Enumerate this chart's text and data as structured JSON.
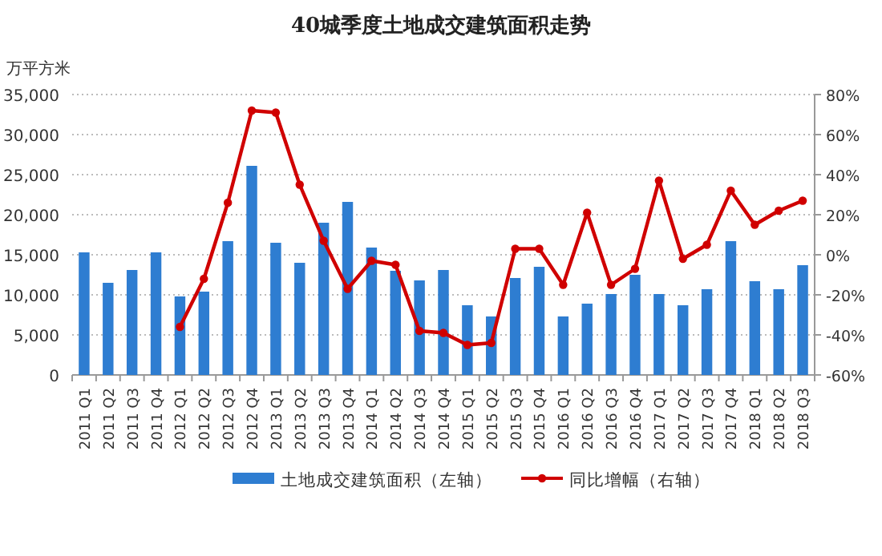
{
  "chart_data": {
    "type": "bar",
    "title": "40城季度土地成交建筑面积走势",
    "ylabel": "万平方米",
    "categories": [
      "2011 Q1",
      "2011 Q2",
      "2011 Q3",
      "2011 Q4",
      "2012 Q1",
      "2012 Q2",
      "2012 Q3",
      "2012 Q4",
      "2013 Q1",
      "2013 Q2",
      "2013 Q3",
      "2013 Q4",
      "2014 Q1",
      "2014 Q2",
      "2014 Q3",
      "2014 Q4",
      "2015 Q1",
      "2015 Q2",
      "2015 Q3",
      "2015 Q4",
      "2016 Q1",
      "2016 Q2",
      "2016 Q3",
      "2016 Q4",
      "2017 Q1",
      "2017 Q2",
      "2017 Q3",
      "2017 Q4",
      "2018 Q1",
      "2018 Q2",
      "2018 Q3"
    ],
    "series": [
      {
        "name": "土地成交建筑面积（左轴）",
        "color": "#2e7dd1",
        "values": [
          15300,
          11500,
          13100,
          15300,
          9800,
          10400,
          16700,
          26100,
          16500,
          14000,
          19000,
          21600,
          15900,
          13000,
          11800,
          13100,
          8700,
          7300,
          12100,
          13500,
          7300,
          8900,
          10100,
          12500,
          10100,
          8700,
          10700,
          16700,
          11700,
          10700,
          13700
        ]
      },
      {
        "name": "同比增幅（右轴）",
        "type": "line",
        "axis": "y2",
        "color": "#d00000",
        "values": [
          null,
          null,
          null,
          null,
          -36,
          -12,
          26,
          72,
          71,
          35,
          7,
          -17,
          -3,
          -5,
          -38,
          -39,
          -45,
          -44,
          3,
          3,
          -15,
          21,
          -15,
          -7,
          37,
          -2,
          5,
          32,
          15,
          22,
          27
        ]
      }
    ],
    "ylim": [
      0,
      35000
    ],
    "yticks": [
      {
        "value": 0,
        "label": "0"
      },
      {
        "value": 5000,
        "label": "5,000"
      },
      {
        "value": 10000,
        "label": "10,000"
      },
      {
        "value": 15000,
        "label": "15,000"
      },
      {
        "value": 20000,
        "label": "20,000"
      },
      {
        "value": 25000,
        "label": "25,000"
      },
      {
        "value": 30000,
        "label": "30,000"
      },
      {
        "value": 35000,
        "label": "35,000"
      }
    ],
    "y2lim": [
      -60,
      80
    ],
    "y2ticks": [
      {
        "value": -60,
        "label": "-60%"
      },
      {
        "value": -40,
        "label": "-40%"
      },
      {
        "value": -20,
        "label": "-20%"
      },
      {
        "value": 0,
        "label": "0%"
      },
      {
        "value": 20,
        "label": "20%"
      },
      {
        "value": 40,
        "label": "40%"
      },
      {
        "value": 60,
        "label": "60%"
      },
      {
        "value": 80,
        "label": "80%"
      }
    ],
    "grid": "y",
    "legend": "bottom",
    "marker": "circle",
    "line_style": "solid"
  }
}
